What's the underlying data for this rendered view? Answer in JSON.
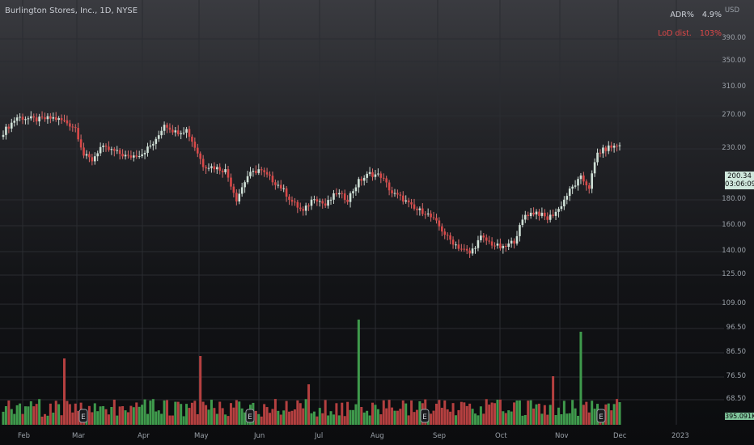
{
  "header": {
    "title": "Burlington Stores, Inc., 1D, NYSE"
  },
  "stats": {
    "adr_label": "ADR%",
    "adr_value": "4.9%",
    "lod_label": "LoD dist.",
    "lod_value": "103%"
  },
  "axis": {
    "currency": "USD",
    "y_ticks": [
      "390.00",
      "350.00",
      "310.00",
      "270.00",
      "230.00",
      "180.00",
      "160.00",
      "140.00",
      "125.00",
      "109.00",
      "96.50",
      "86.50",
      "76.50",
      "68.50"
    ],
    "x_ticks": [
      "Feb",
      "Mar",
      "Apr",
      "May",
      "Jun",
      "Jul",
      "Aug",
      "Sep",
      "Oct",
      "Nov",
      "Dec",
      "2023"
    ]
  },
  "price_label": {
    "last_price": "200.34",
    "countdown": "03:06:09"
  },
  "volume_label": "395.091K",
  "colors": {
    "up": "#4caf50",
    "down": "#d94848",
    "up_volume": "#3f9a4c",
    "down_volume": "#b54040",
    "grid": "#2a2c31"
  },
  "chart_data": {
    "type": "candlestick",
    "symbol": "Burlington Stores, Inc.",
    "interval": "1D",
    "exchange": "NYSE",
    "y_scale": "log",
    "ylim": [
      105,
      400
    ],
    "x_categories": [
      "Feb",
      "Mar",
      "Apr",
      "May",
      "Jun",
      "Jul",
      "Aug",
      "Sep",
      "Oct",
      "Nov",
      "Dec"
    ],
    "close_path": [
      [
        0,
        215
      ],
      [
        5,
        233
      ],
      [
        12,
        230
      ],
      [
        18,
        232
      ],
      [
        22,
        228
      ],
      [
        26,
        220
      ],
      [
        29,
        190
      ],
      [
        32,
        185
      ],
      [
        35,
        198
      ],
      [
        40,
        194
      ],
      [
        45,
        188
      ],
      [
        50,
        192
      ],
      [
        55,
        205
      ],
      [
        58,
        225
      ],
      [
        62,
        215
      ],
      [
        66,
        218
      ],
      [
        68,
        205
      ],
      [
        72,
        180
      ],
      [
        76,
        178
      ],
      [
        80,
        175
      ],
      [
        84,
        150
      ],
      [
        88,
        170
      ],
      [
        92,
        176
      ],
      [
        96,
        168
      ],
      [
        100,
        160
      ],
      [
        104,
        148
      ],
      [
        108,
        140
      ],
      [
        112,
        152
      ],
      [
        116,
        145
      ],
      [
        120,
        155
      ],
      [
        124,
        150
      ],
      [
        128,
        165
      ],
      [
        132,
        172
      ],
      [
        136,
        170
      ],
      [
        140,
        155
      ],
      [
        144,
        150
      ],
      [
        148,
        142
      ],
      [
        152,
        140
      ],
      [
        156,
        132
      ],
      [
        160,
        122
      ],
      [
        164,
        116
      ],
      [
        168,
        112
      ],
      [
        172,
        122
      ],
      [
        176,
        118
      ],
      [
        180,
        115
      ],
      [
        184,
        120
      ],
      [
        188,
        138
      ],
      [
        192,
        140
      ],
      [
        196,
        135
      ],
      [
        200,
        142
      ],
      [
        204,
        157
      ],
      [
        208,
        168
      ],
      [
        211,
        160
      ],
      [
        214,
        192
      ],
      [
        218,
        198
      ],
      [
        222,
        200.34
      ]
    ],
    "events": [
      "earnings-Mar",
      "earnings-May",
      "earnings-Aug",
      "earnings-Nov"
    ],
    "volume_note": "daily volume bars, spikes near earnings",
    "volume_spikes_k": [
      {
        "month": "Mar",
        "value": 86.5
      },
      {
        "month": "May",
        "value": 87.0
      },
      {
        "month": "Aug",
        "value": 98.0
      },
      {
        "month": "Nov",
        "value": 94.0
      }
    ],
    "last_volume": "395.091K"
  }
}
